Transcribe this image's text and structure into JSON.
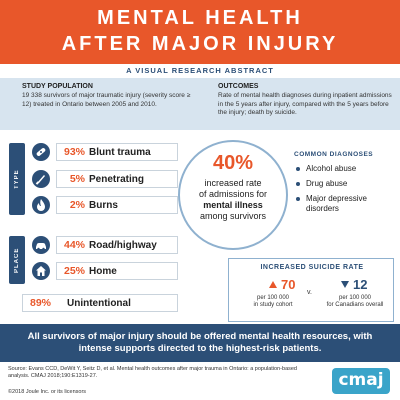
{
  "header": {
    "title_line1": "MENTAL HEALTH",
    "title_line2": "AFTER MAJOR INJURY",
    "subtitle": "A VISUAL RESEARCH ABSTRACT"
  },
  "study_population": {
    "heading": "STUDY POPULATION",
    "text": "19 338 survivors of major traumatic injury (severity score ≥ 12) treated in Ontario between 2005 and 2010."
  },
  "outcomes": {
    "heading": "OUTCOMES",
    "text": "Rate of mental health diagnoses during inpatient admissions in the 5 years after injury, compared with the 5 years before the injury; death by suicide."
  },
  "type_group": {
    "label": "TYPE",
    "items": [
      {
        "pct": "93%",
        "label": "Blunt trauma",
        "icon": "bandage-icon"
      },
      {
        "pct": "5%",
        "label": "Penetrating",
        "icon": "knife-icon"
      },
      {
        "pct": "2%",
        "label": "Burns",
        "icon": "flame-icon"
      }
    ]
  },
  "place_group": {
    "label": "PLACE",
    "items": [
      {
        "pct": "44%",
        "label": "Road/highway",
        "icon": "car-icon"
      },
      {
        "pct": "25%",
        "label": "Home",
        "icon": "house-icon"
      }
    ]
  },
  "intent": {
    "pct": "89%",
    "label": "Unintentional"
  },
  "key_finding": {
    "pct": "40%",
    "line1": "increased rate",
    "line2": "of admissions for",
    "line3": "mental illness",
    "line4": "among survivors"
  },
  "common_diagnoses": {
    "heading": "COMMON DIAGNOSES",
    "items": [
      "Alcohol abuse",
      "Drug abuse",
      "Major depressive disorders"
    ]
  },
  "suicide": {
    "heading": "INCREASED SUICIDE RATE",
    "cohort_value": "70",
    "cohort_unit": "per 100 000",
    "cohort_desc": "in study cohort",
    "vs": "v.",
    "canada_value": "12",
    "canada_unit": "per 100 000",
    "canada_desc": "for Canadians overall"
  },
  "message": "All survivors of major injury should be offered mental health resources, with intense supports directed to the highest-risk patients.",
  "source": "Source: Evans CCD, DeWit Y, Seitz D, et al. Mental health outcomes after major trauma in Ontario: a population-based analysis. CMAJ 2018;190:E1319-27.",
  "copyright": "©2018 Joule Inc. or its licensors",
  "logo": "cmaj",
  "colors": {
    "orange": "#e8572a",
    "navy": "#2c4f77",
    "light_blue": "#d7e4ef",
    "logo_blue": "#3aa4c9"
  }
}
